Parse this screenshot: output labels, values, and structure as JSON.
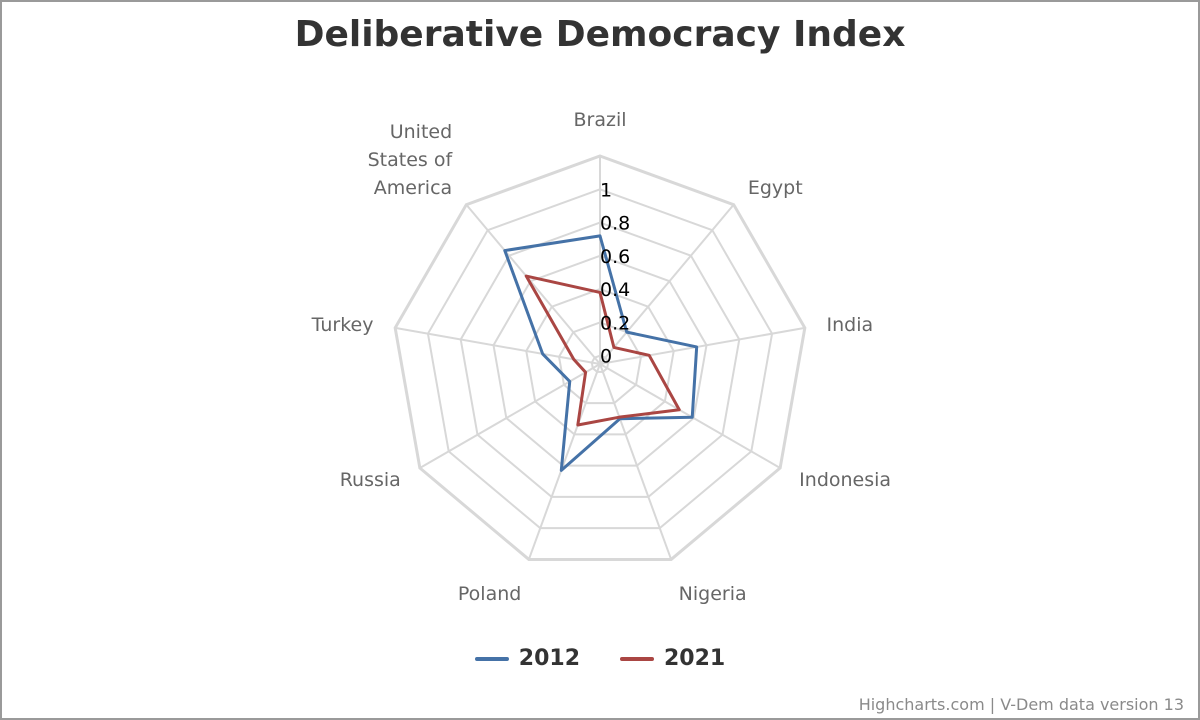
{
  "chart_data": {
    "type": "radar",
    "title": "Deliberative Democracy Index",
    "categories": [
      "Brazil",
      "Egypt",
      "India",
      "Indonesia",
      "Nigeria",
      "Poland",
      "Russia",
      "Turkey",
      "United States of America"
    ],
    "category_label_lines": [
      [
        "Brazil"
      ],
      [
        "Egypt"
      ],
      [
        "India"
      ],
      [
        "Indonesia"
      ],
      [
        "Nigeria"
      ],
      [
        "Poland"
      ],
      [
        "Russia"
      ],
      [
        "Turkey"
      ],
      [
        "United",
        "States of",
        "America"
      ]
    ],
    "series": [
      {
        "name": "2012",
        "color": "#4572a7",
        "values": [
          0.72,
          0.2,
          0.54,
          0.59,
          0.3,
          0.63,
          0.16,
          0.3,
          0.84
        ]
      },
      {
        "name": "2021",
        "color": "#aa4643",
        "values": [
          0.38,
          0.08,
          0.25,
          0.5,
          0.29,
          0.34,
          0.05,
          0.11,
          0.64
        ]
      }
    ],
    "yTicks": [
      {
        "value": 0,
        "label": "0"
      },
      {
        "value": 0.2,
        "label": "0.2"
      },
      {
        "value": 0.4,
        "label": "0.4"
      },
      {
        "value": 0.6,
        "label": "0.6"
      },
      {
        "value": 0.8,
        "label": "0.8"
      },
      {
        "value": 1,
        "label": "1"
      }
    ],
    "ylim": [
      -0.05,
      1.2
    ],
    "grid": true,
    "grid_color": "#d8d8d8",
    "legend_position": "bottom-center"
  },
  "legend": {
    "items": [
      {
        "label": "2012",
        "color": "#4572a7"
      },
      {
        "label": "2021",
        "color": "#aa4643"
      }
    ]
  },
  "credits": "Highcharts.com | V-Dem data version 13"
}
